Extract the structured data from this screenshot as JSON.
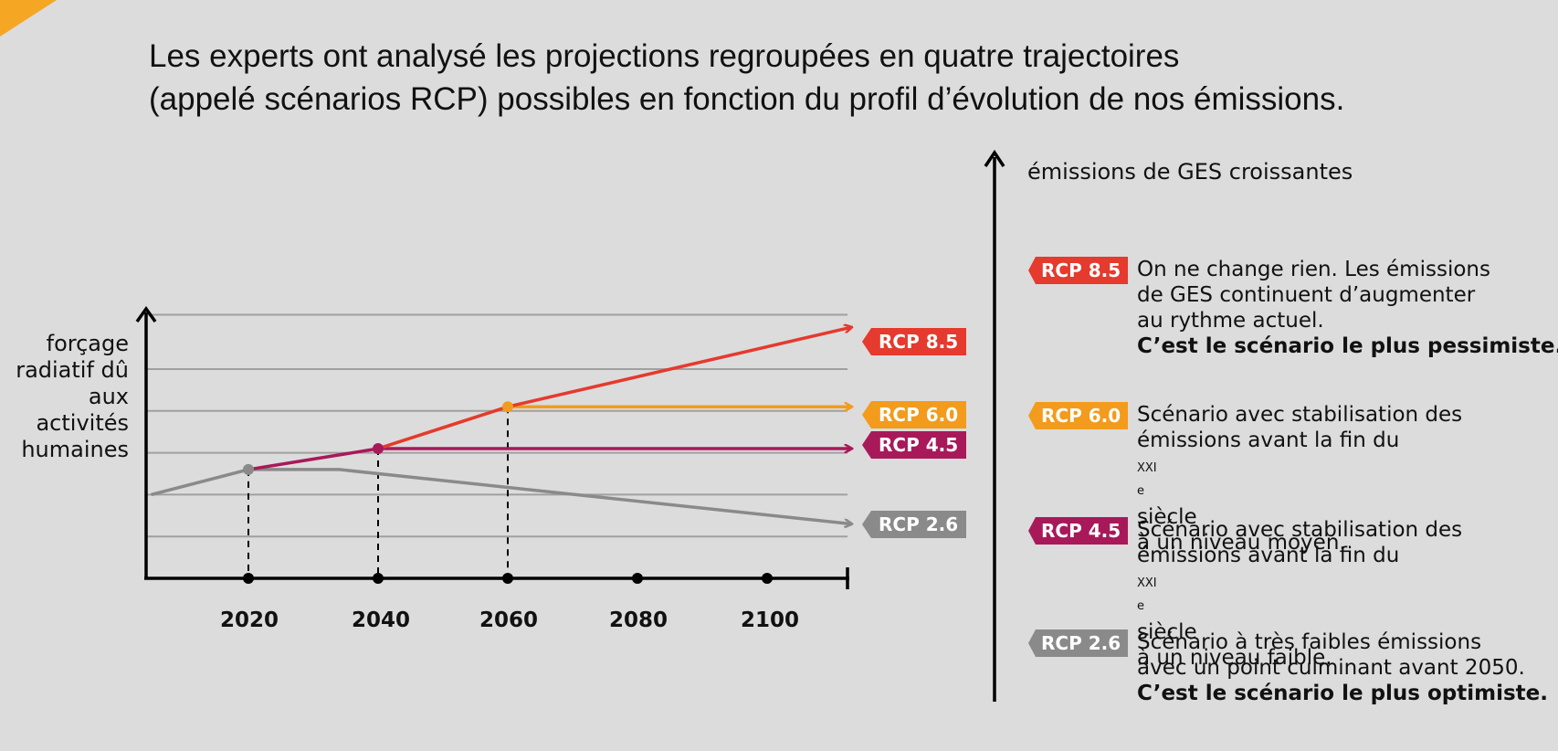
{
  "headline": {
    "line1": "Les experts ont analysé les projections regroupées en quatre trajectoires",
    "line2": "(appelé scénarios RCP) possibles en fonction du profil d’évolution de nos émissions."
  },
  "chart": {
    "ylabel": [
      "forçage",
      "radiatif dû",
      "aux",
      "activités",
      "humaines"
    ],
    "ticks": [
      "2020",
      "2040",
      "2060",
      "2080",
      "2100"
    ]
  },
  "chart_data": {
    "type": "line",
    "xlabel": "",
    "ylabel": "forçage radiatif dû aux activités humaines",
    "x_ticks": [
      2020,
      2040,
      2060,
      2080,
      2100
    ],
    "series": [
      {
        "name": "RCP 8.5",
        "color": "#e53a2e",
        "points": [
          [
            2040,
            3.1
          ],
          [
            2060,
            4.1
          ],
          [
            2113,
            6.0
          ]
        ]
      },
      {
        "name": "RCP 6.0",
        "color": "#f39b1c",
        "points": [
          [
            2040,
            3.1
          ],
          [
            2060,
            4.1
          ],
          [
            2113,
            4.1
          ]
        ]
      },
      {
        "name": "RCP 4.5",
        "color": "#a8195a",
        "points": [
          [
            2020,
            2.6
          ],
          [
            2040,
            3.1
          ],
          [
            2113,
            3.1
          ]
        ]
      },
      {
        "name": "RCP 2.6",
        "color": "#8a8a8a",
        "points": [
          [
            2005,
            2.0
          ],
          [
            2020,
            2.6
          ],
          [
            2034,
            2.6
          ],
          [
            2113,
            1.3
          ]
        ]
      }
    ]
  },
  "right_axis_caption": "émissions de GES croissantes",
  "legend": [
    {
      "tag": "RCP 8.5",
      "color": "#e53a2e",
      "lines": [
        "On ne change rien. Les émissions",
        "de GES continuent d’augmenter",
        "au rythme actuel."
      ],
      "bold": "C’est le scénario le plus pessimiste."
    },
    {
      "tag": "RCP 6.0",
      "color": "#f39b1c",
      "lines": [
        "Scénario avec stabilisation des",
        "émissions avant la fin du",
        "à un niveau moyen."
      ],
      "century": "xxi",
      "century_sup": "e",
      "century_after": "siècle",
      "bold": ""
    },
    {
      "tag": "RCP 4.5",
      "color": "#a8195a",
      "lines": [
        "Scénario avec stabilisation des",
        "émissions avant la fin du",
        "à un niveau faible."
      ],
      "century": "xxi",
      "century_sup": "e",
      "century_after": "siècle",
      "bold": ""
    },
    {
      "tag": "RCP 2.6",
      "color": "#8a8a8a",
      "lines": [
        "Scénario à très faibles émissions",
        "avec un point culminant avant 2050."
      ],
      "bold": "C’est le scénario le plus optimiste."
    }
  ]
}
